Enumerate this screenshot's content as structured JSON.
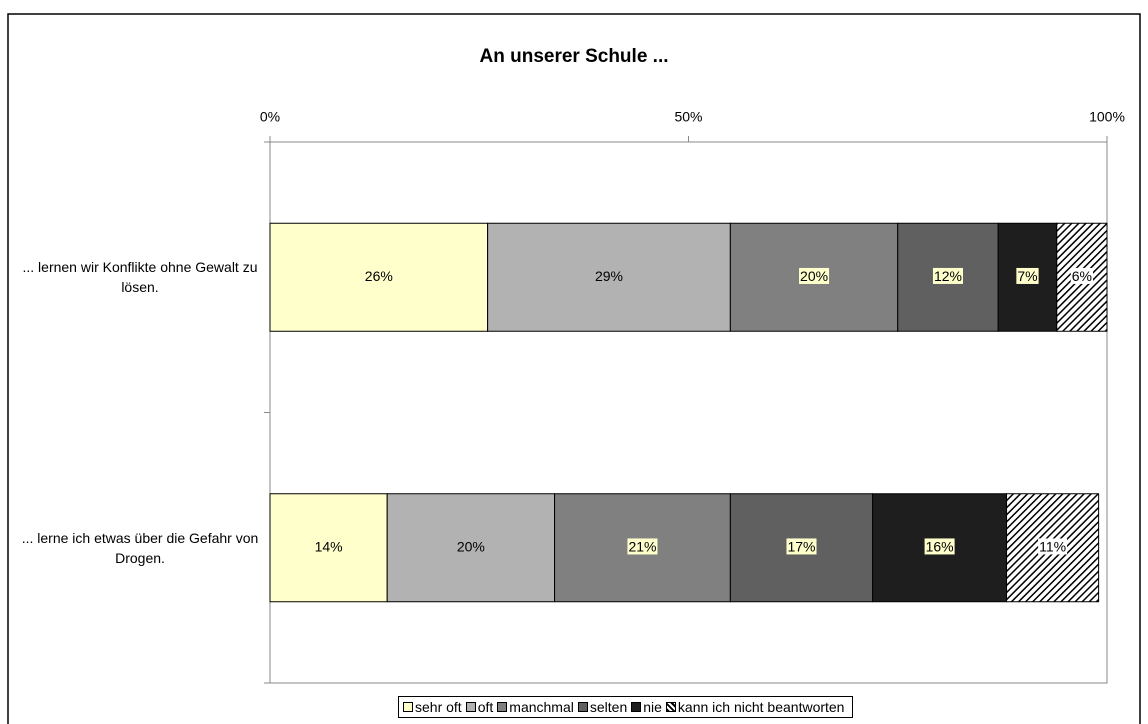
{
  "chart_data": {
    "type": "bar",
    "orientation": "horizontal",
    "stacked": true,
    "title": "An unserer Schule ...",
    "categories": [
      "... lernen wir Konflikte ohne Gewalt zu lösen.",
      "... lerne ich etwas über die Gefahr von Drogen."
    ],
    "series": [
      {
        "name": "sehr oft",
        "color": "#ffffcc",
        "values": [
          26,
          14
        ],
        "value_labels": [
          "26%",
          "14%"
        ]
      },
      {
        "name": "oft",
        "color": "#b2b2b2",
        "values": [
          29,
          20
        ],
        "value_labels": [
          "29%",
          "20%"
        ]
      },
      {
        "name": "manchmal",
        "color": "#808080",
        "values": [
          20,
          21
        ],
        "value_labels": [
          "20%",
          "21%"
        ],
        "label_background": "#ffffcc"
      },
      {
        "name": "selten",
        "color": "#606060",
        "values": [
          12,
          17
        ],
        "value_labels": [
          "12%",
          "17%"
        ],
        "label_background": "#ffffcc"
      },
      {
        "name": "nie",
        "color": "#1e1e1e",
        "values": [
          7,
          16
        ],
        "value_labels": [
          "7%",
          "16%"
        ],
        "label_background": "#ffffcc"
      },
      {
        "name": "kann ich nicht beantworten",
        "color": "#ffffff",
        "pattern": "diagonal-hatch",
        "values": [
          6,
          11
        ],
        "value_labels": [
          "6%",
          "11%"
        ],
        "label_background": "#ffffff"
      }
    ],
    "xlim": [
      0,
      100
    ],
    "xticks": [
      {
        "value": 0,
        "label": "0%"
      },
      {
        "value": 50,
        "label": "50%"
      },
      {
        "value": 100,
        "label": "100%"
      }
    ],
    "legend": "bottom"
  }
}
